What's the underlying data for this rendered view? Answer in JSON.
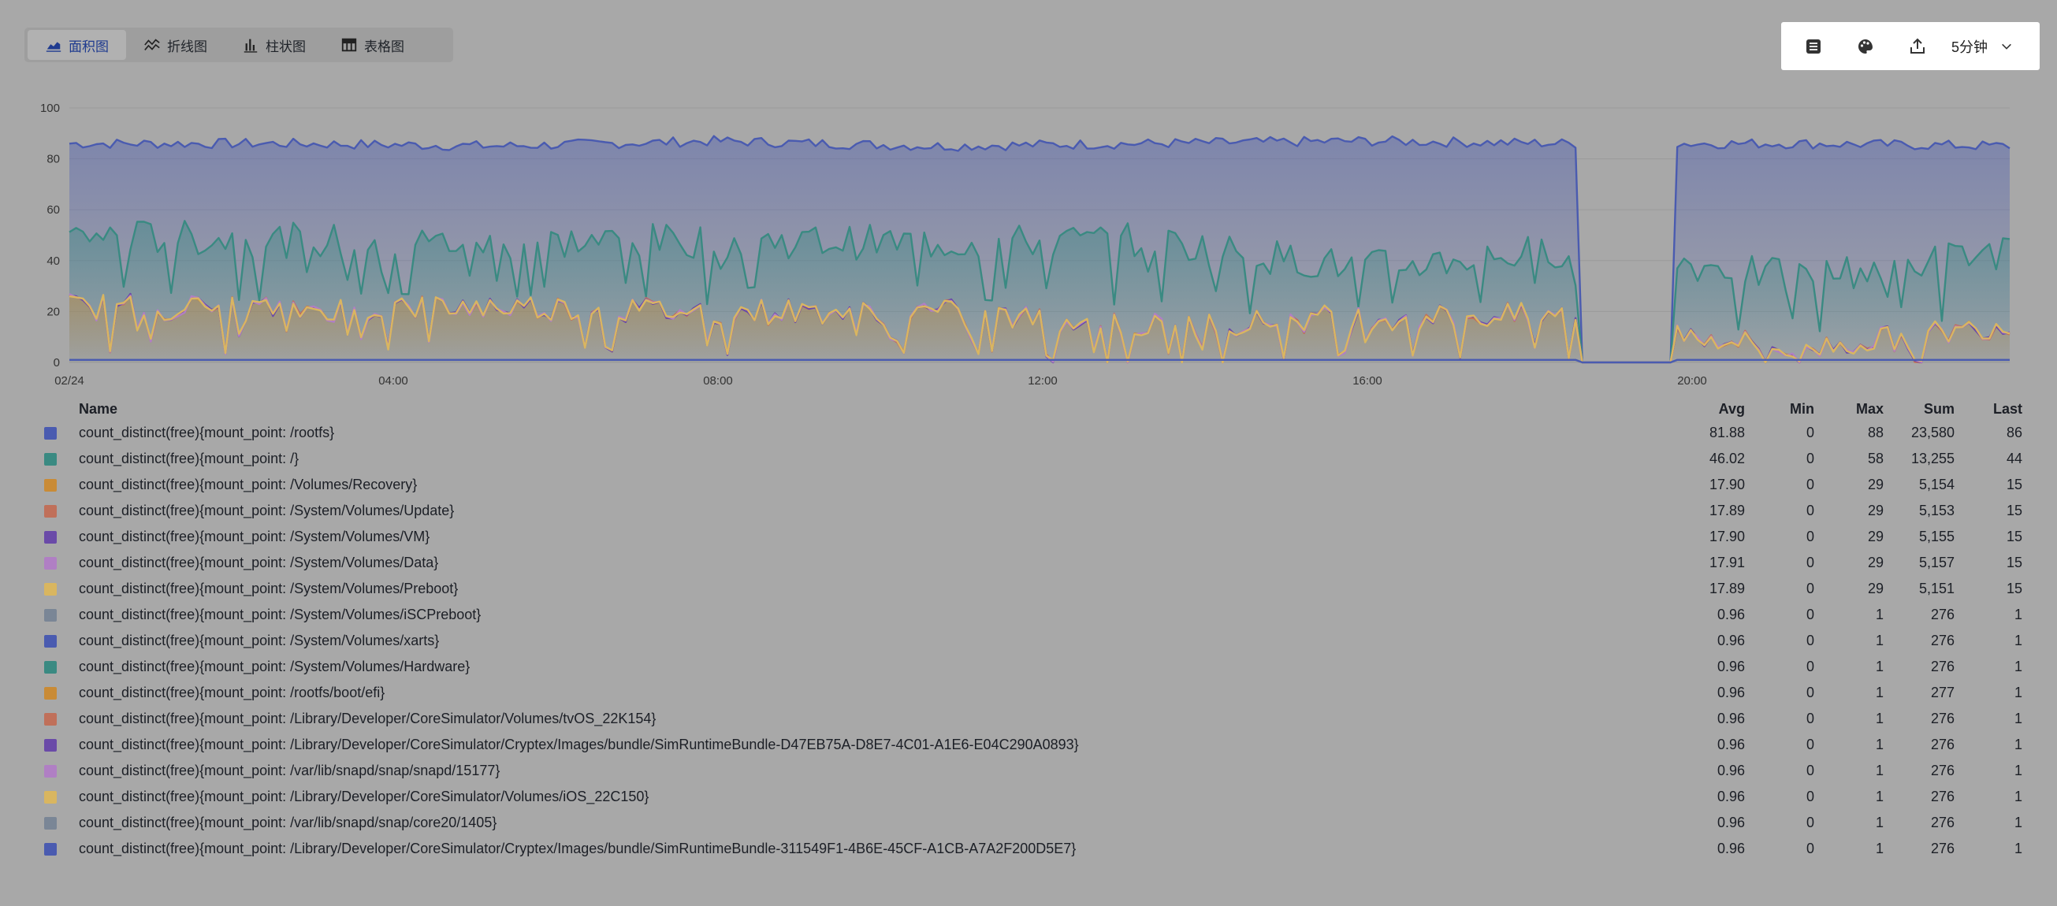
{
  "tabs": [
    {
      "label": "面积图",
      "icon": "area-chart-icon",
      "active": true
    },
    {
      "label": "折线图",
      "icon": "line-chart-icon",
      "active": false
    },
    {
      "label": "柱状图",
      "icon": "bar-chart-icon",
      "active": false
    },
    {
      "label": "表格图",
      "icon": "table-icon",
      "active": false
    }
  ],
  "toolbar": {
    "buttons": [
      {
        "icon": "list-detail-icon"
      },
      {
        "icon": "palette-icon"
      },
      {
        "icon": "export-icon"
      }
    ],
    "interval_label": "5分钟",
    "interval_icon": "chevron-down-icon"
  },
  "chart_data": {
    "type": "area",
    "x_ticks": [
      "02/24",
      "04:00",
      "08:00",
      "12:00",
      "16:00",
      "20:00"
    ],
    "x_range": [
      "02/24 00:00",
      "02/24 23:59"
    ],
    "ylim": [
      0,
      100
    ],
    "y_ticks": [
      0,
      20,
      40,
      60,
      80,
      100
    ],
    "gap": {
      "start": "02/24 18:40",
      "end": "02/24 19:45"
    },
    "grid": true,
    "legend_position": "bottom",
    "series": [
      {
        "name": "count_distinct(free){mount_point: /rootfs}",
        "color": "#4a5bb0",
        "profile": [
          86,
          86,
          85,
          87,
          85,
          86,
          87,
          86,
          86,
          85
        ]
      },
      {
        "name": "count_distinct(free){mount_point: /}",
        "color": "#3a8a82",
        "profile": [
          50,
          48,
          47,
          48,
          47,
          48,
          37,
          45,
          33,
          44
        ]
      },
      {
        "name": "count_distinct(free){mount_point: /Volumes/Recovery}",
        "color": "#c98b36",
        "profile": [
          22,
          21,
          22,
          20,
          20,
          14,
          18,
          18,
          5,
          15
        ]
      },
      {
        "name": "count_distinct(free){mount_point: /System/Volumes/Update}",
        "color": "#c0705a",
        "profile": [
          22,
          21,
          22,
          20,
          20,
          14,
          18,
          18,
          5,
          15
        ]
      },
      {
        "name": "count_distinct(free){mount_point: /System/Volumes/VM}",
        "color": "#6a4aa8",
        "profile": [
          22,
          21,
          22,
          20,
          20,
          14,
          18,
          18,
          5,
          15
        ]
      },
      {
        "name": "count_distinct(free){mount_point: /System/Volumes/Data}",
        "color": "#b07fc4",
        "profile": [
          22,
          21,
          22,
          20,
          20,
          14,
          18,
          18,
          5,
          15
        ]
      },
      {
        "name": "count_distinct(free){mount_point: /System/Volumes/Preboot}",
        "color": "#d9b660",
        "profile": [
          22,
          21,
          22,
          20,
          20,
          14,
          18,
          18,
          5,
          15
        ]
      },
      {
        "name": "count_distinct(free){mount_point: /System/Volumes/iSCPreboot}",
        "color": "#7a8696",
        "profile": [
          1,
          1,
          1,
          1,
          1,
          1,
          1,
          1,
          1,
          1
        ]
      },
      {
        "name": "count_distinct(free){mount_point: /System/Volumes/xarts}",
        "color": "#4a5bb0",
        "profile": [
          1,
          1,
          1,
          1,
          1,
          1,
          1,
          1,
          1,
          1
        ]
      }
    ]
  },
  "legend": {
    "headers": {
      "name": "Name",
      "avg": "Avg",
      "min": "Min",
      "max": "Max",
      "sum": "Sum",
      "last": "Last"
    },
    "rows": [
      {
        "color": "#4a5bb0",
        "name": "count_distinct(free){mount_point: /rootfs}",
        "avg": "81.88",
        "min": "0",
        "max": "88",
        "sum": "23,580",
        "last": "86"
      },
      {
        "color": "#3a8a82",
        "name": "count_distinct(free){mount_point: /}",
        "avg": "46.02",
        "min": "0",
        "max": "58",
        "sum": "13,255",
        "last": "44"
      },
      {
        "color": "#c98b36",
        "name": "count_distinct(free){mount_point: /Volumes/Recovery}",
        "avg": "17.90",
        "min": "0",
        "max": "29",
        "sum": "5,154",
        "last": "15"
      },
      {
        "color": "#c0705a",
        "name": "count_distinct(free){mount_point: /System/Volumes/Update}",
        "avg": "17.89",
        "min": "0",
        "max": "29",
        "sum": "5,153",
        "last": "15"
      },
      {
        "color": "#6a4aa8",
        "name": "count_distinct(free){mount_point: /System/Volumes/VM}",
        "avg": "17.90",
        "min": "0",
        "max": "29",
        "sum": "5,155",
        "last": "15"
      },
      {
        "color": "#b07fc4",
        "name": "count_distinct(free){mount_point: /System/Volumes/Data}",
        "avg": "17.91",
        "min": "0",
        "max": "29",
        "sum": "5,157",
        "last": "15"
      },
      {
        "color": "#d9b660",
        "name": "count_distinct(free){mount_point: /System/Volumes/Preboot}",
        "avg": "17.89",
        "min": "0",
        "max": "29",
        "sum": "5,151",
        "last": "15"
      },
      {
        "color": "#7a8696",
        "name": "count_distinct(free){mount_point: /System/Volumes/iSCPreboot}",
        "avg": "0.96",
        "min": "0",
        "max": "1",
        "sum": "276",
        "last": "1"
      },
      {
        "color": "#4a5bb0",
        "name": "count_distinct(free){mount_point: /System/Volumes/xarts}",
        "avg": "0.96",
        "min": "0",
        "max": "1",
        "sum": "276",
        "last": "1"
      },
      {
        "color": "#3a8a82",
        "name": "count_distinct(free){mount_point: /System/Volumes/Hardware}",
        "avg": "0.96",
        "min": "0",
        "max": "1",
        "sum": "276",
        "last": "1"
      },
      {
        "color": "#c98b36",
        "name": "count_distinct(free){mount_point: /rootfs/boot/efi}",
        "avg": "0.96",
        "min": "0",
        "max": "1",
        "sum": "277",
        "last": "1"
      },
      {
        "color": "#c0705a",
        "name": "count_distinct(free){mount_point: /Library/Developer/CoreSimulator/Volumes/tvOS_22K154}",
        "avg": "0.96",
        "min": "0",
        "max": "1",
        "sum": "276",
        "last": "1"
      },
      {
        "color": "#6a4aa8",
        "name": "count_distinct(free){mount_point: /Library/Developer/CoreSimulator/Cryptex/Images/bundle/SimRuntimeBundle-D47EB75A-D8E7-4C01-A1E6-E04C290A0893}",
        "avg": "0.96",
        "min": "0",
        "max": "1",
        "sum": "276",
        "last": "1"
      },
      {
        "color": "#b07fc4",
        "name": "count_distinct(free){mount_point: /var/lib/snapd/snap/snapd/15177}",
        "avg": "0.96",
        "min": "0",
        "max": "1",
        "sum": "276",
        "last": "1"
      },
      {
        "color": "#d9b660",
        "name": "count_distinct(free){mount_point: /Library/Developer/CoreSimulator/Volumes/iOS_22C150}",
        "avg": "0.96",
        "min": "0",
        "max": "1",
        "sum": "276",
        "last": "1"
      },
      {
        "color": "#7a8696",
        "name": "count_distinct(free){mount_point: /var/lib/snapd/snap/core20/1405}",
        "avg": "0.96",
        "min": "0",
        "max": "1",
        "sum": "276",
        "last": "1"
      },
      {
        "color": "#4a5bb0",
        "name": "count_distinct(free){mount_point: /Library/Developer/CoreSimulator/Cryptex/Images/bundle/SimRuntimeBundle-311549F1-4B6E-45CF-A1CB-A7A2F200D5E7}",
        "avg": "0.96",
        "min": "0",
        "max": "1",
        "sum": "276",
        "last": "1"
      }
    ]
  }
}
